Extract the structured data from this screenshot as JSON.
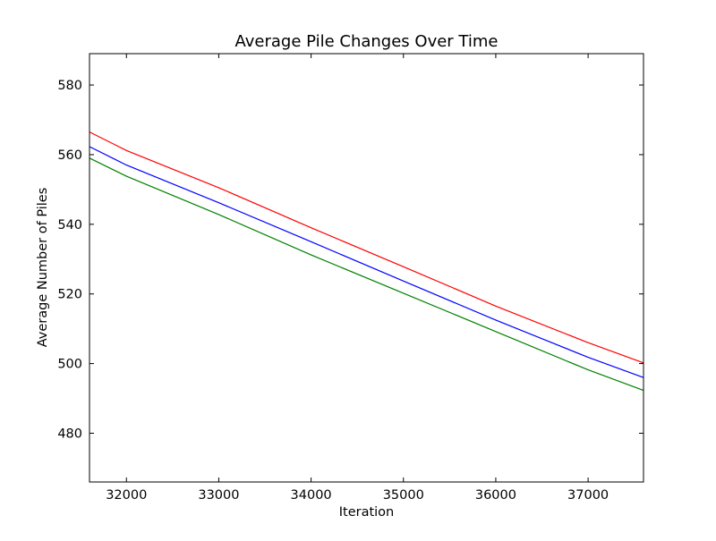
{
  "chart_data": {
    "type": "line",
    "title": "Average Pile Changes Over Time",
    "xlabel": "Iteration",
    "ylabel": "Average Number of Piles",
    "xlim": [
      31600,
      37600
    ],
    "ylim": [
      466,
      589
    ],
    "xticks": [
      32000,
      33000,
      34000,
      35000,
      36000,
      37000
    ],
    "yticks": [
      480,
      500,
      520,
      540,
      560,
      580
    ],
    "grid": false,
    "legend": "none",
    "series": [
      {
        "color": "#ff0000",
        "x": [
          31600,
          32000,
          33000,
          34000,
          35000,
          36000,
          37000,
          37600
        ],
        "y": [
          566.5,
          561.2,
          550.5,
          539.0,
          527.8,
          516.5,
          506.0,
          500.2
        ]
      },
      {
        "color": "#0000ff",
        "x": [
          31600,
          32000,
          33000,
          34000,
          35000,
          36000,
          37000,
          37600
        ],
        "y": [
          562.3,
          557.0,
          546.2,
          535.0,
          523.7,
          512.5,
          501.8,
          496.0
        ]
      },
      {
        "color": "#008000",
        "x": [
          31600,
          32000,
          33000,
          34000,
          35000,
          36000,
          37000,
          37600
        ],
        "y": [
          559.0,
          553.8,
          542.8,
          531.2,
          520.2,
          509.2,
          498.2,
          492.3
        ]
      }
    ]
  }
}
